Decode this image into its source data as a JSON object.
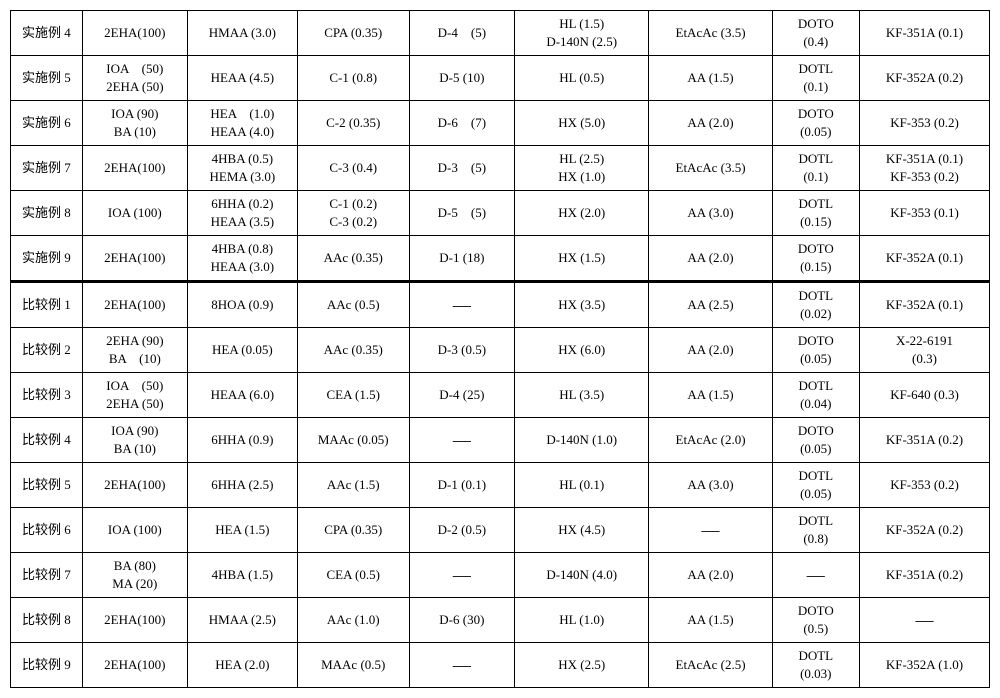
{
  "columns": 9,
  "rows": [
    {
      "label": "实施例 4",
      "c1": "2EHA(100)",
      "c2": "HMAA (3.0)",
      "c3": "CPA (0.35)",
      "c4": "D-4　(5)",
      "c5": "HL (1.5)\nD-140N (2.5)",
      "c6": "EtAcAc (3.5)",
      "c7": "DOTO\n(0.4)",
      "c8": "KF-351A (0.1)"
    },
    {
      "label": "实施例 5",
      "c1": "IOA　(50)\n2EHA (50)",
      "c2": "HEAA (4.5)",
      "c3": "C-1 (0.8)",
      "c4": "D-5 (10)",
      "c5": "HL (0.5)",
      "c6": "AA (1.5)",
      "c7": "DOTL\n(0.1)",
      "c8": "KF-352A (0.2)"
    },
    {
      "label": "实施例 6",
      "c1": "IOA (90)\nBA (10)",
      "c2": "HEA　(1.0)\nHEAA (4.0)",
      "c3": "C-2 (0.35)",
      "c4": "D-6　(7)",
      "c5": "HX (5.0)",
      "c6": "AA (2.0)",
      "c7": "DOTO\n(0.05)",
      "c8": "KF-353 (0.2)"
    },
    {
      "label": "实施例 7",
      "c1": "2EHA(100)",
      "c2": "4HBA (0.5)\nHEMA (3.0)",
      "c3": "C-3 (0.4)",
      "c4": "D-3　(5)",
      "c5": "HL (2.5)\nHX (1.0)",
      "c6": "EtAcAc (3.5)",
      "c7": "DOTL\n(0.1)",
      "c8": "KF-351A (0.1)\nKF-353 (0.2)"
    },
    {
      "label": "实施例 8",
      "c1": "IOA (100)",
      "c2": "6HHA (0.2)\nHEAA (3.5)",
      "c3": "C-1 (0.2)\nC-3 (0.2)",
      "c4": "D-5　(5)",
      "c5": "HX (2.0)",
      "c6": "AA (3.0)",
      "c7": "DOTL\n(0.15)",
      "c8": "KF-353 (0.1)"
    },
    {
      "label": "实施例 9",
      "c1": "2EHA(100)",
      "c2": "4HBA (0.8)\nHEAA (3.0)",
      "c3": "AAc (0.35)",
      "c4": "D-1 (18)",
      "c5": "HX (1.5)",
      "c6": "AA (2.0)",
      "c7": "DOTO\n(0.15)",
      "c8": "KF-352A (0.1)"
    },
    {
      "label": "比较例 1",
      "c1": "2EHA(100)",
      "c2": "8HOA (0.9)",
      "c3": "AAc (0.5)",
      "c4": "—",
      "c5": "HX (3.5)",
      "c6": "AA (2.5)",
      "c7": "DOTL\n(0.02)",
      "c8": "KF-352A (0.1)",
      "sep": true
    },
    {
      "label": "比较例 2",
      "c1": "2EHA (90)\nBA　(10)",
      "c2": "HEA (0.05)",
      "c3": "AAc (0.35)",
      "c4": "D-3 (0.5)",
      "c5": "HX (6.0)",
      "c6": "AA (2.0)",
      "c7": "DOTO\n(0.05)",
      "c8": "X-22-6191\n(0.3)"
    },
    {
      "label": "比较例 3",
      "c1": "IOA　(50)\n2EHA (50)",
      "c2": "HEAA (6.0)",
      "c3": "CEA (1.5)",
      "c4": "D-4 (25)",
      "c5": "HL (3.5)",
      "c6": "AA (1.5)",
      "c7": "DOTL\n(0.04)",
      "c8": "KF-640 (0.3)"
    },
    {
      "label": "比较例 4",
      "c1": "IOA (90)\nBA (10)",
      "c2": "6HHA (0.9)",
      "c3": "MAAc (0.05)",
      "c4": "—",
      "c5": "D-140N (1.0)",
      "c6": "EtAcAc (2.0)",
      "c7": "DOTO\n(0.05)",
      "c8": "KF-351A (0.2)"
    },
    {
      "label": "比较例 5",
      "c1": "2EHA(100)",
      "c2": "6HHA (2.5)",
      "c3": "AAc (1.5)",
      "c4": "D-1 (0.1)",
      "c5": "HL (0.1)",
      "c6": "AA (3.0)",
      "c7": "DOTL\n(0.05)",
      "c8": "KF-353 (0.2)"
    },
    {
      "label": "比较例 6",
      "c1": "IOA (100)",
      "c2": "HEA (1.5)",
      "c3": "CPA (0.35)",
      "c4": "D-2 (0.5)",
      "c5": "HX (4.5)",
      "c6": "—",
      "c7": "DOTL\n(0.8)",
      "c8": "KF-352A (0.2)"
    },
    {
      "label": "比较例 7",
      "c1": "BA (80)\nMA (20)",
      "c2": "4HBA (1.5)",
      "c3": "CEA (0.5)",
      "c4": "—",
      "c5": "D-140N (4.0)",
      "c6": "AA (2.0)",
      "c7": "—",
      "c8": "KF-351A (0.2)"
    },
    {
      "label": "比较例 8",
      "c1": "2EHA(100)",
      "c2": "HMAA (2.5)",
      "c3": "AAc (1.0)",
      "c4": "D-6 (30)",
      "c5": "HL (1.0)",
      "c6": "AA (1.5)",
      "c7": "DOTO\n(0.5)",
      "c8": "—"
    },
    {
      "label": "比较例 9",
      "c1": "2EHA(100)",
      "c2": "HEA (2.0)",
      "c3": "MAAc (0.5)",
      "c4": "—",
      "c5": "HX (2.5)",
      "c6": "EtAcAc (2.5)",
      "c7": "DOTL\n(0.03)",
      "c8": "KF-352A (1.0)"
    }
  ]
}
